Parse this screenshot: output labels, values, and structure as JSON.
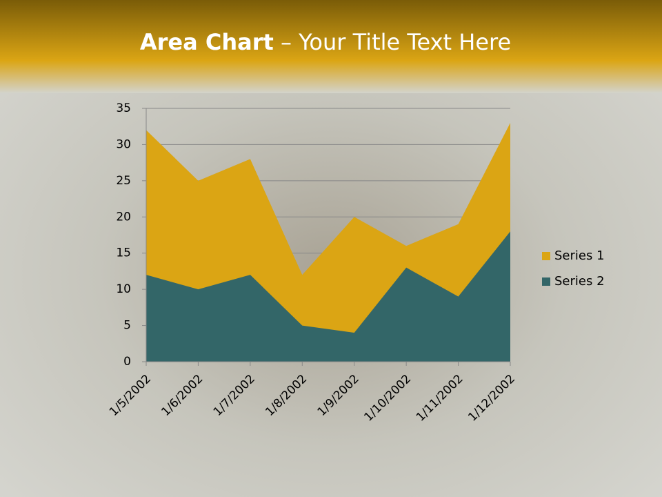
{
  "chart_data": {
    "type": "area",
    "title_bold": "Area Chart",
    "title": "– Your Title Text Here",
    "categories": [
      "1/5/2002",
      "1/6/2002",
      "1/7/2002",
      "1/8/2002",
      "1/9/2002",
      "1/10/2002",
      "1/11/2002",
      "1/12/2002"
    ],
    "series": [
      {
        "name": "Series 1",
        "color": "#dba514",
        "values": [
          32,
          25,
          28,
          12,
          20,
          16,
          19,
          33
        ]
      },
      {
        "name": "Series 2",
        "color": "#336668",
        "values": [
          12,
          10,
          12,
          5,
          4,
          13,
          9,
          18
        ]
      }
    ],
    "ylim": [
      0,
      35
    ],
    "yticks": [
      0,
      5,
      10,
      15,
      20,
      25,
      30,
      35
    ],
    "grid": true,
    "legend": "right"
  }
}
